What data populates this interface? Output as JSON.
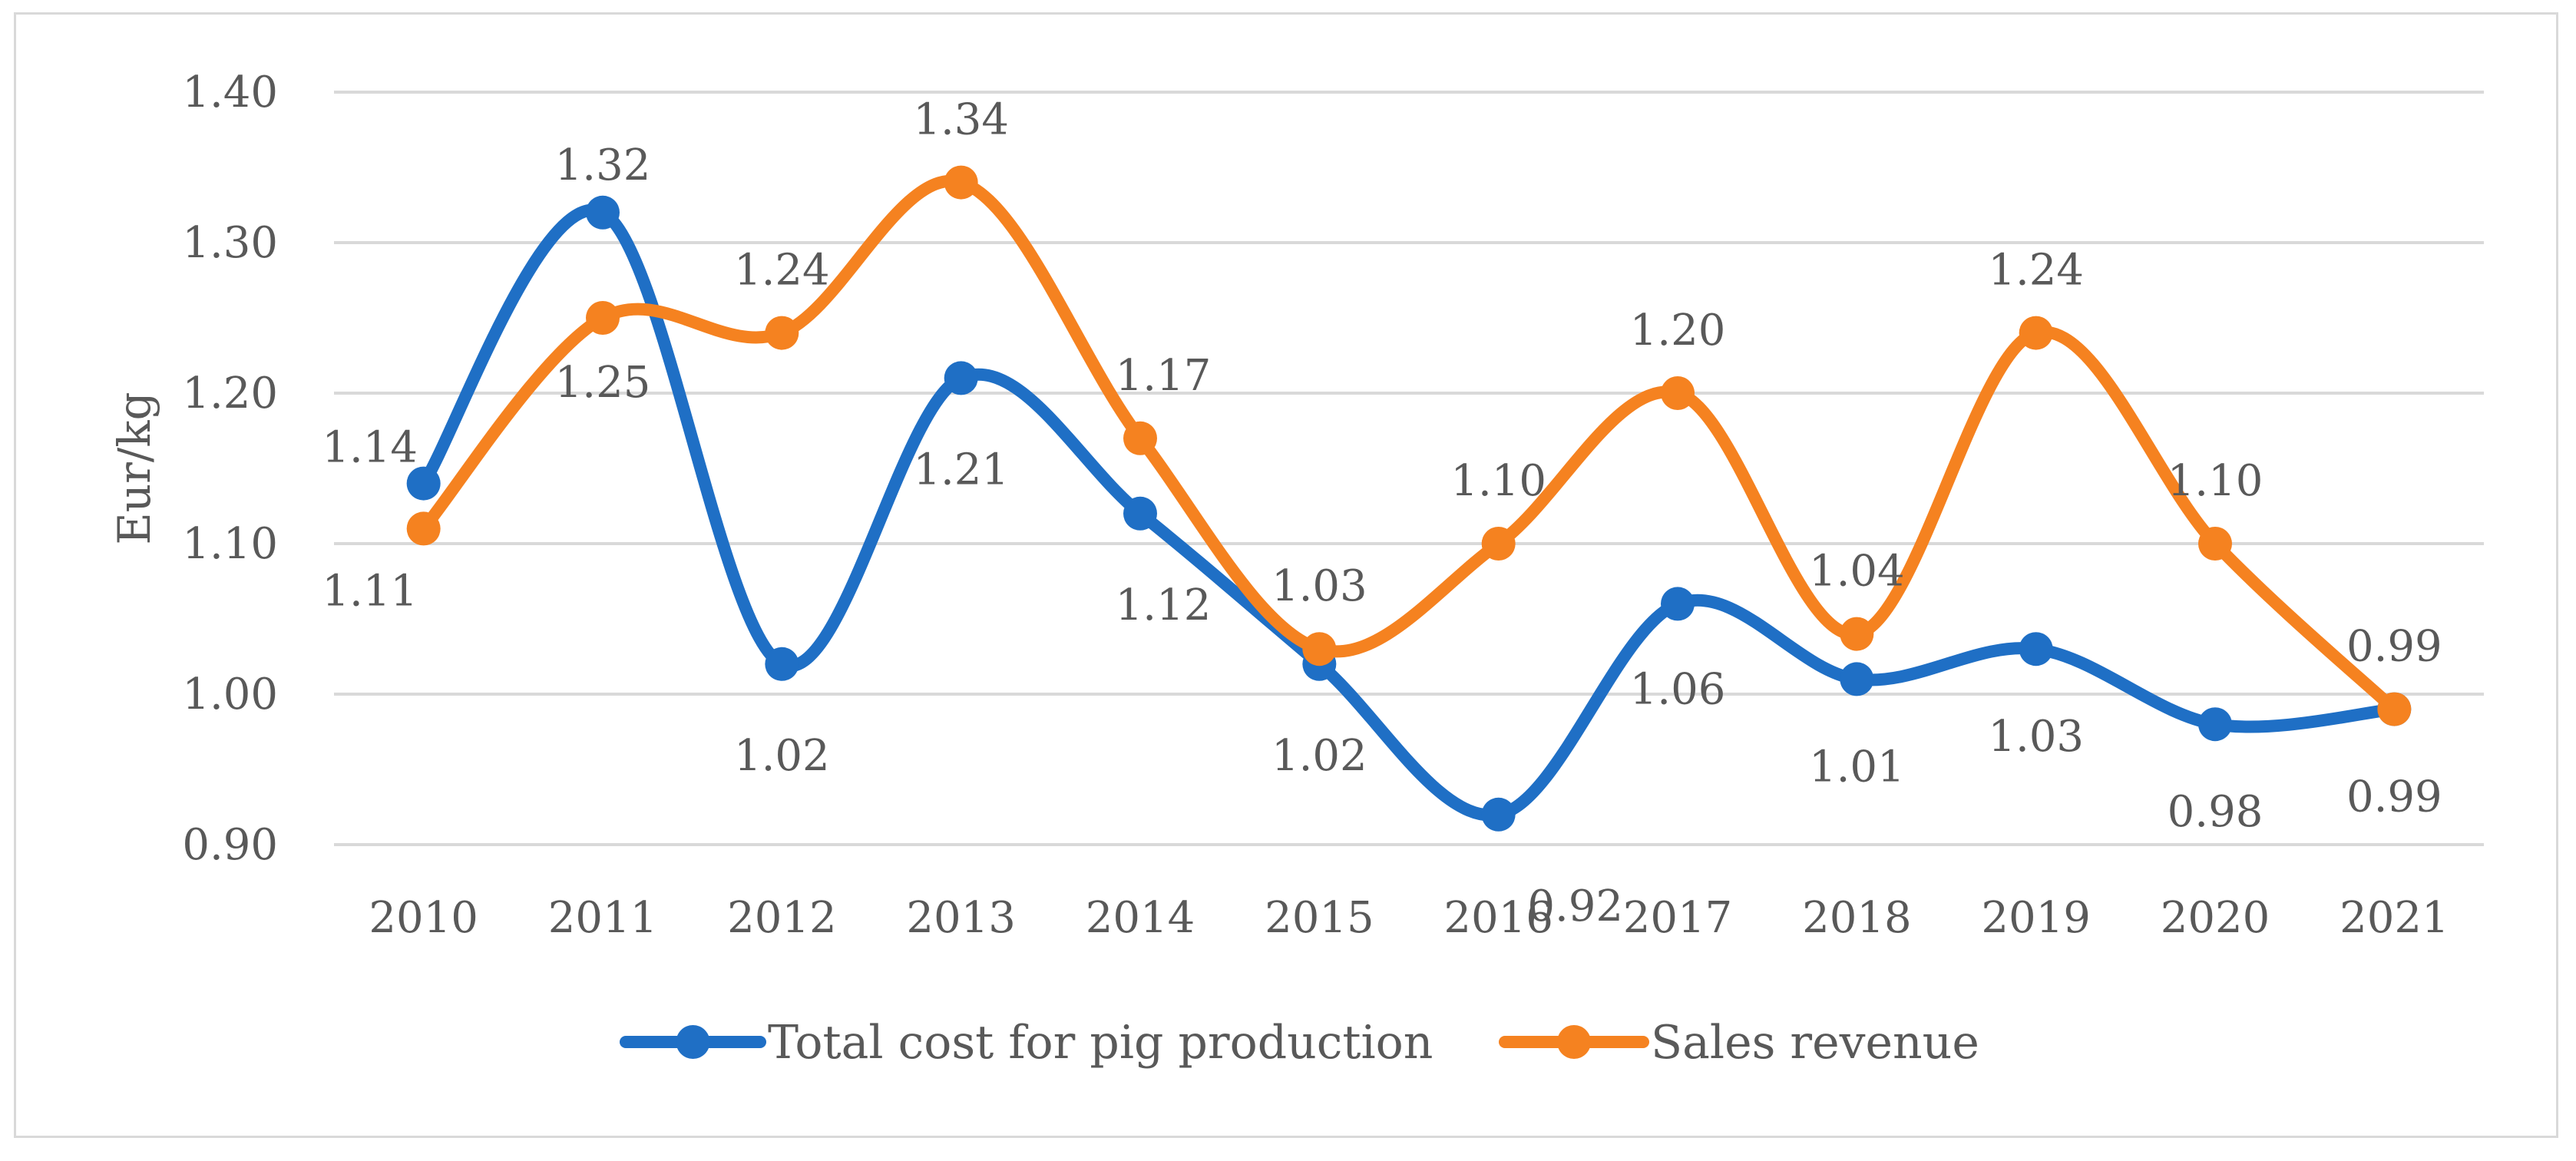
{
  "chart_data": {
    "type": "line",
    "title": "",
    "xlabel": "",
    "ylabel": "Eur/kg",
    "ylim": [
      0.9,
      1.4
    ],
    "yticks": [
      "1.40",
      "1.30",
      "1.20",
      "1.10",
      "1.00",
      "0.90"
    ],
    "ytick_values": [
      1.4,
      1.3,
      1.2,
      1.1,
      1.0,
      0.9
    ],
    "categories": [
      "2010",
      "2011",
      "2012",
      "2013",
      "2014",
      "2015",
      "2016",
      "2017",
      "2018",
      "2019",
      "2020",
      "2021"
    ],
    "grid": true,
    "legend_position": "bottom",
    "smooth": true,
    "series": [
      {
        "name": "Total cost for pig production",
        "color": "#1f6fc5",
        "values": [
          1.14,
          1.32,
          1.02,
          1.21,
          1.12,
          1.02,
          0.92,
          1.06,
          1.01,
          1.03,
          0.98,
          0.99
        ],
        "labels": [
          "1.14",
          "1.32",
          "1.02",
          "1.21",
          "1.12",
          "1.02",
          "0.92",
          "1.06",
          "1.01",
          "1.03",
          "0.98",
          "0.99"
        ]
      },
      {
        "name": "Sales revenue",
        "color": "#f58220",
        "values": [
          1.11,
          1.25,
          1.24,
          1.34,
          1.17,
          1.03,
          1.1,
          1.2,
          1.04,
          1.24,
          1.1,
          0.99
        ],
        "labels": [
          "1.11",
          "1.25",
          "1.24",
          "1.34",
          "1.17",
          "1.03",
          "1.10",
          "1.20",
          "1.04",
          "1.24",
          "1.10",
          "0.99"
        ]
      }
    ]
  },
  "colors": {
    "grid": "#d9d9d9",
    "text": "#595959",
    "frame": "#d9d9d9"
  }
}
